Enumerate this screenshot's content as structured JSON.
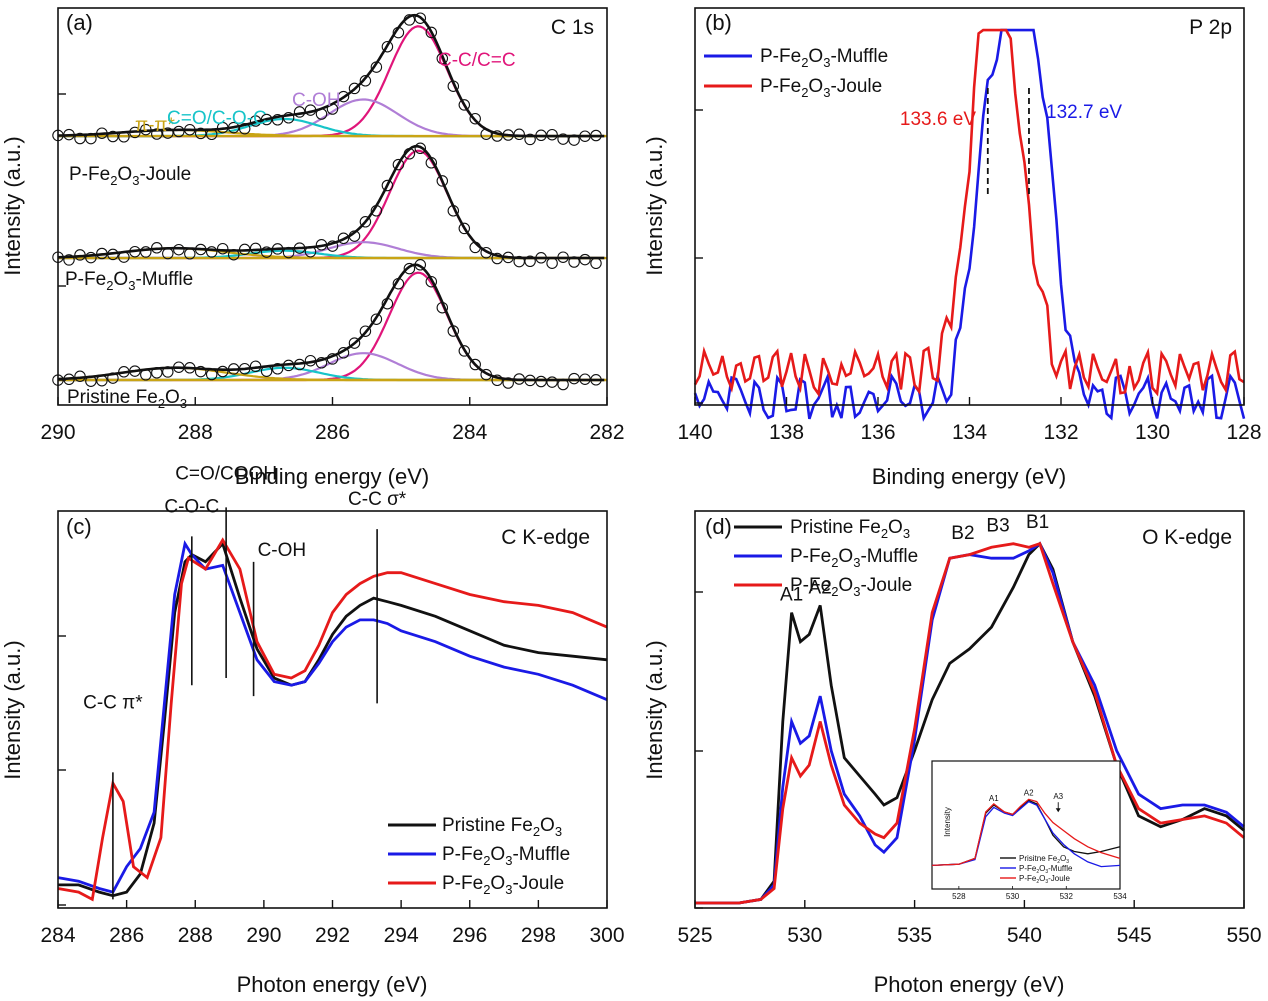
{
  "colors": {
    "black": "#111111",
    "blue": "#1a1ae6",
    "red": "#e61a1a",
    "pink": "#e0157a",
    "violet": "#b07ed6",
    "cyan": "#17c4c9",
    "gold": "#c9a415",
    "dashed": "#111111"
  },
  "chart_data": [
    {
      "id": "a",
      "type": "line",
      "panel_label": "(a)",
      "corner_label": "C 1s",
      "title": "",
      "xlabel": "Binding energy (eV)",
      "ylabel": "Intensity (a.u.)",
      "xlim": [
        290,
        282
      ],
      "x_ticks": [
        290,
        288,
        286,
        284,
        282
      ],
      "ylim": [
        0,
        3.05
      ],
      "spectra": [
        {
          "name": "P-Fe2O3-Joule",
          "label": [
            "P-Fe",
            "2",
            "O",
            "3",
            "-Joule"
          ],
          "offset": 2.0
        },
        {
          "name": "P-Fe2O3-Muffle",
          "label": [
            "P-Fe",
            "2",
            "O",
            "3",
            "-Muffle"
          ],
          "offset": 1.0
        },
        {
          "name": "Pristine Fe2O3",
          "label": [
            "Pristine Fe",
            "2",
            "O",
            "3",
            ""
          ],
          "offset": 0.0
        }
      ],
      "components": [
        {
          "name": "C-C/C=C",
          "center": 284.75,
          "color_key": "pink",
          "heights": [
            0.9,
            0.88,
            0.88
          ]
        },
        {
          "name": "C-OH",
          "center": 285.55,
          "color_key": "violet",
          "heights": [
            0.3,
            0.13,
            0.22
          ]
        },
        {
          "name": "C=O/C-O-C",
          "center": 286.7,
          "color_key": "cyan",
          "heights": [
            0.14,
            0.06,
            0.1
          ]
        },
        {
          "name": "π-π*",
          "center": 288.3,
          "color_key": "gold",
          "heights": [
            0.05,
            0.08,
            0.1
          ]
        }
      ],
      "peak_labels": [
        "π-π*",
        "C=O/C-O-C",
        "C-OH",
        "C-C/C=C"
      ]
    },
    {
      "id": "b",
      "type": "line",
      "panel_label": "(b)",
      "corner_label": "P 2p",
      "title": "",
      "xlabel": "Binding energy (eV)",
      "ylabel": "Intensity (a.u.)",
      "xlim": [
        140,
        128
      ],
      "x_ticks": [
        140,
        138,
        136,
        134,
        132,
        130,
        128
      ],
      "ylim": [
        0,
        1.08
      ],
      "legend": [
        {
          "name": "P-Fe2O3-Muffle",
          "label": [
            "P-Fe",
            "2",
            "O",
            "3",
            "-Muffle"
          ],
          "color_key": "blue"
        },
        {
          "name": "P-Fe2O3-Joule",
          "label": [
            "P-Fe",
            "2",
            "O",
            "3",
            "-Joule"
          ],
          "color_key": "red"
        }
      ],
      "series": [
        {
          "name": "P-Fe2O3-Muffle",
          "color_key": "blue",
          "baseline": 0.05,
          "peaks": [
            [
              133.45,
              0.82
            ],
            [
              132.6,
              0.93
            ]
          ]
        },
        {
          "name": "P-Fe2O3-Joule",
          "color_key": "red",
          "baseline": 0.12,
          "peaks": [
            [
              133.6,
              0.9
            ],
            [
              133.0,
              0.46
            ]
          ]
        }
      ],
      "markers": [
        {
          "x": 133.6,
          "label": "133.6 eV",
          "color_key": "red"
        },
        {
          "x": 132.7,
          "label": "132.7 eV",
          "color_key": "blue"
        }
      ]
    },
    {
      "id": "c",
      "type": "line",
      "panel_label": "(c)",
      "corner_label": "C K-edge",
      "title": "",
      "xlabel": "Photon energy (eV)",
      "ylabel": "Intensity (a.u.)",
      "xlim": [
        284,
        300
      ],
      "x_ticks": [
        284,
        286,
        288,
        290,
        292,
        294,
        296,
        298,
        300
      ],
      "ylim": [
        0,
        1.08
      ],
      "legend": [
        {
          "name": "Pristine Fe2O3",
          "label": [
            "Pristine Fe",
            "2",
            "O",
            "3",
            ""
          ],
          "color_key": "black"
        },
        {
          "name": "P-Fe2O3-Muffle",
          "label": [
            "P-Fe",
            "2",
            "O",
            "3",
            "-Muffle"
          ],
          "color_key": "blue"
        },
        {
          "name": "P-Fe2O3-Joule",
          "label": [
            "P-Fe",
            "2",
            "O",
            "3",
            "-Joule"
          ],
          "color_key": "red"
        }
      ],
      "series": [
        {
          "name": "Pristine Fe2O3",
          "color_key": "black",
          "x": [
            284,
            284.6,
            285.2,
            285.6,
            286.0,
            286.4,
            286.8,
            287.1,
            287.4,
            287.7,
            287.9,
            288.3,
            288.8,
            289.3,
            289.8,
            290.3,
            290.8,
            291.2,
            291.6,
            292.0,
            292.4,
            292.8,
            293.2,
            293.6,
            294.0,
            295,
            296,
            297,
            298,
            299,
            300
          ],
          "y": [
            0.05,
            0.05,
            0.03,
            0.02,
            0.03,
            0.08,
            0.22,
            0.5,
            0.8,
            0.94,
            0.96,
            0.94,
            0.99,
            0.84,
            0.7,
            0.62,
            0.6,
            0.61,
            0.67,
            0.74,
            0.79,
            0.82,
            0.84,
            0.83,
            0.82,
            0.79,
            0.75,
            0.71,
            0.69,
            0.68,
            0.67
          ]
        },
        {
          "name": "P-Fe2O3-Muffle",
          "color_key": "blue",
          "x": [
            284,
            284.6,
            285.2,
            285.6,
            286.0,
            286.4,
            286.8,
            287.1,
            287.4,
            287.7,
            287.9,
            288.3,
            288.8,
            289.3,
            289.8,
            290.3,
            290.8,
            291.2,
            291.6,
            292.0,
            292.4,
            292.8,
            293.2,
            293.6,
            294.0,
            295,
            296,
            297,
            298,
            299,
            300
          ],
          "y": [
            0.07,
            0.06,
            0.04,
            0.03,
            0.1,
            0.15,
            0.25,
            0.55,
            0.85,
            0.99,
            0.96,
            0.92,
            0.93,
            0.8,
            0.67,
            0.61,
            0.6,
            0.61,
            0.66,
            0.72,
            0.76,
            0.78,
            0.78,
            0.77,
            0.75,
            0.72,
            0.68,
            0.65,
            0.63,
            0.6,
            0.56
          ]
        },
        {
          "name": "P-Fe2O3-Joule",
          "color_key": "red",
          "x": [
            284,
            284.6,
            285.0,
            285.3,
            285.6,
            285.9,
            286.2,
            286.6,
            287.0,
            287.3,
            287.6,
            287.8,
            288.3,
            288.8,
            289.3,
            289.8,
            290.3,
            290.8,
            291.2,
            291.6,
            292.0,
            292.4,
            292.8,
            293.2,
            293.6,
            294.0,
            295,
            296,
            297,
            298,
            299,
            300
          ],
          "y": [
            0.04,
            0.03,
            0.01,
            0.18,
            0.33,
            0.28,
            0.1,
            0.07,
            0.18,
            0.55,
            0.88,
            0.95,
            0.92,
            1.0,
            0.92,
            0.72,
            0.63,
            0.62,
            0.64,
            0.71,
            0.8,
            0.85,
            0.88,
            0.9,
            0.91,
            0.91,
            0.88,
            0.85,
            0.83,
            0.82,
            0.8,
            0.76
          ]
        }
      ],
      "markers": [
        {
          "x": 285.6,
          "y0": 0.01,
          "y1": 0.36,
          "label": "C-C π*",
          "label_at": 0.52
        },
        {
          "x": 287.9,
          "y0": 0.6,
          "y1": 1.01,
          "label": "C-O-C",
          "label_at": 1.06
        },
        {
          "x": 288.9,
          "y0": 0.62,
          "y1": 1.09,
          "label": "C=O/COOH",
          "label_at": 1.15
        },
        {
          "x": 289.7,
          "y0": 0.57,
          "y1": 0.94,
          "label": "C-OH",
          "label_at": 0.94
        },
        {
          "x": 293.3,
          "y0": 0.55,
          "y1": 1.03,
          "label": "C-C σ*",
          "label_at": 1.08
        }
      ]
    },
    {
      "id": "d",
      "type": "line",
      "panel_label": "(d)",
      "corner_label": "O K-edge",
      "title": "",
      "xlabel": "Photon energy (eV)",
      "ylabel": "Intensity (a.u.)",
      "xlim": [
        525,
        550
      ],
      "x_ticks": [
        525,
        530,
        535,
        540,
        545,
        550
      ],
      "ylim": [
        0,
        1.08
      ],
      "legend": [
        {
          "name": "Pristine Fe2O3",
          "label": [
            "Pristine Fe",
            "2",
            "O",
            "3",
            ""
          ],
          "color_key": "black"
        },
        {
          "name": "P-Fe2O3-Muffle",
          "label": [
            "P-Fe",
            "2",
            "O",
            "3",
            "-Muffle"
          ],
          "color_key": "blue"
        },
        {
          "name": "P-Fe2O3-Joule",
          "label": [
            "P-Fe",
            "2",
            "O",
            "3",
            "-Joule"
          ],
          "color_key": "red"
        }
      ],
      "series": [
        {
          "name": "Pristine Fe2O3",
          "color_key": "black",
          "x": [
            525,
            527,
            528,
            528.6,
            529.0,
            529.4,
            529.8,
            530.2,
            530.7,
            531.2,
            531.8,
            532.5,
            533.2,
            533.6,
            534.2,
            535,
            535.8,
            536.6,
            537.5,
            538.5,
            539.5,
            540.2,
            540.7,
            541.3,
            542.2,
            543.2,
            544.2,
            545.2,
            546.2,
            547.2,
            548.2,
            549.2,
            550
          ],
          "y": [
            0.0,
            0.0,
            0.01,
            0.06,
            0.5,
            0.8,
            0.72,
            0.74,
            0.82,
            0.6,
            0.4,
            0.35,
            0.3,
            0.27,
            0.29,
            0.42,
            0.56,
            0.66,
            0.7,
            0.76,
            0.87,
            0.96,
            0.99,
            0.92,
            0.72,
            0.57,
            0.38,
            0.24,
            0.21,
            0.23,
            0.26,
            0.24,
            0.2
          ]
        },
        {
          "name": "P-Fe2O3-Muffle",
          "color_key": "blue",
          "x": [
            525,
            527,
            528,
            528.6,
            529.0,
            529.4,
            529.8,
            530.2,
            530.7,
            531.2,
            531.8,
            532.5,
            533.2,
            533.6,
            534.2,
            535,
            535.8,
            536.6,
            537.5,
            538.5,
            539.5,
            540.2,
            540.7,
            541.3,
            542.2,
            543.2,
            544.2,
            545.2,
            546.2,
            547.2,
            548.2,
            549.2,
            550
          ],
          "y": [
            0.0,
            0.0,
            0.01,
            0.05,
            0.32,
            0.5,
            0.44,
            0.46,
            0.57,
            0.42,
            0.3,
            0.24,
            0.16,
            0.14,
            0.18,
            0.45,
            0.78,
            0.95,
            0.96,
            0.95,
            0.95,
            0.97,
            0.99,
            0.91,
            0.72,
            0.6,
            0.42,
            0.3,
            0.26,
            0.27,
            0.27,
            0.25,
            0.21
          ]
        },
        {
          "name": "P-Fe2O3-Joule",
          "color_key": "red",
          "x": [
            525,
            527,
            528,
            528.6,
            529.0,
            529.4,
            529.8,
            530.2,
            530.7,
            531.2,
            531.8,
            532.5,
            533.2,
            533.6,
            534.2,
            535,
            535.8,
            536.6,
            537.5,
            538.5,
            539.5,
            540.2,
            540.7,
            541.3,
            542.2,
            543.2,
            544.2,
            545.2,
            546.2,
            547.2,
            548.2,
            549.2,
            550
          ],
          "y": [
            0.0,
            0.0,
            0.01,
            0.04,
            0.26,
            0.4,
            0.35,
            0.38,
            0.5,
            0.38,
            0.27,
            0.22,
            0.19,
            0.18,
            0.22,
            0.48,
            0.8,
            0.95,
            0.96,
            0.98,
            0.99,
            0.98,
            0.99,
            0.88,
            0.72,
            0.58,
            0.38,
            0.26,
            0.22,
            0.23,
            0.24,
            0.22,
            0.18
          ]
        }
      ],
      "peak_labels": [
        {
          "x": 529.4,
          "y": 0.8,
          "label": "A1"
        },
        {
          "x": 530.7,
          "y": 0.82,
          "label": "A2"
        },
        {
          "x": 537.2,
          "y": 0.97,
          "label": "B2"
        },
        {
          "x": 538.8,
          "y": 0.99,
          "label": "B3"
        },
        {
          "x": 540.6,
          "y": 1.0,
          "label": "B1"
        }
      ],
      "inset": {
        "xlim": [
          527,
          534
        ],
        "x_ticks": [
          528,
          530,
          532,
          534
        ],
        "ylabel": "Intensity",
        "legend": [
          {
            "name": "Prisitne Fe2O3",
            "label": [
              "Prisitne Fe",
              "2",
              "O",
              "3",
              ""
            ],
            "color_key": "black"
          },
          {
            "name": "P-Fe2O3-Muffle",
            "label": [
              "P-Fe",
              "2",
              "O",
              "3",
              "-Muffle"
            ],
            "color_key": "blue"
          },
          {
            "name": "P-Fe2O3-Joule",
            "label": [
              "P-Fe",
              "2",
              "O",
              "3",
              "-Joule"
            ],
            "color_key": "red"
          }
        ],
        "series": [
          {
            "name": "Prisitne Fe2O3",
            "color_key": "black",
            "x": [
              527,
              528,
              528.6,
              529.0,
              529.3,
              529.7,
              530.0,
              530.3,
              530.6,
              530.9,
              531.2,
              531.5,
              531.9,
              532.3,
              532.8,
              533.3,
              534
            ],
            "y": [
              0.1,
              0.11,
              0.16,
              0.55,
              0.62,
              0.56,
              0.54,
              0.6,
              0.66,
              0.63,
              0.5,
              0.36,
              0.26,
              0.22,
              0.2,
              0.22,
              0.26
            ]
          },
          {
            "name": "P-Fe2O3-Muffle",
            "color_key": "blue",
            "x": [
              527,
              528,
              528.6,
              529.0,
              529.3,
              529.7,
              530.0,
              530.3,
              530.6,
              530.9,
              531.2,
              531.5,
              531.9,
              532.3,
              532.8,
              533.3,
              534
            ],
            "y": [
              0.1,
              0.11,
              0.15,
              0.52,
              0.6,
              0.55,
              0.53,
              0.59,
              0.65,
              0.62,
              0.5,
              0.38,
              0.28,
              0.2,
              0.13,
              0.09,
              0.1
            ]
          },
          {
            "name": "P-Fe2O3-Joule",
            "color_key": "red",
            "x": [
              527,
              528,
              528.6,
              529.0,
              529.3,
              529.7,
              530.0,
              530.3,
              530.6,
              530.9,
              531.2,
              531.5,
              531.9,
              532.3,
              532.8,
              533.3,
              534
            ],
            "y": [
              0.1,
              0.11,
              0.16,
              0.56,
              0.63,
              0.56,
              0.54,
              0.61,
              0.67,
              0.65,
              0.55,
              0.47,
              0.4,
              0.33,
              0.26,
              0.21,
              0.16
            ]
          }
        ],
        "peak_labels": [
          {
            "x": 529.3,
            "y": 0.62,
            "label": "A1"
          },
          {
            "x": 530.6,
            "y": 0.67,
            "label": "A2"
          },
          {
            "x": 531.7,
            "y": 0.55,
            "label": "A3"
          }
        ]
      }
    }
  ]
}
